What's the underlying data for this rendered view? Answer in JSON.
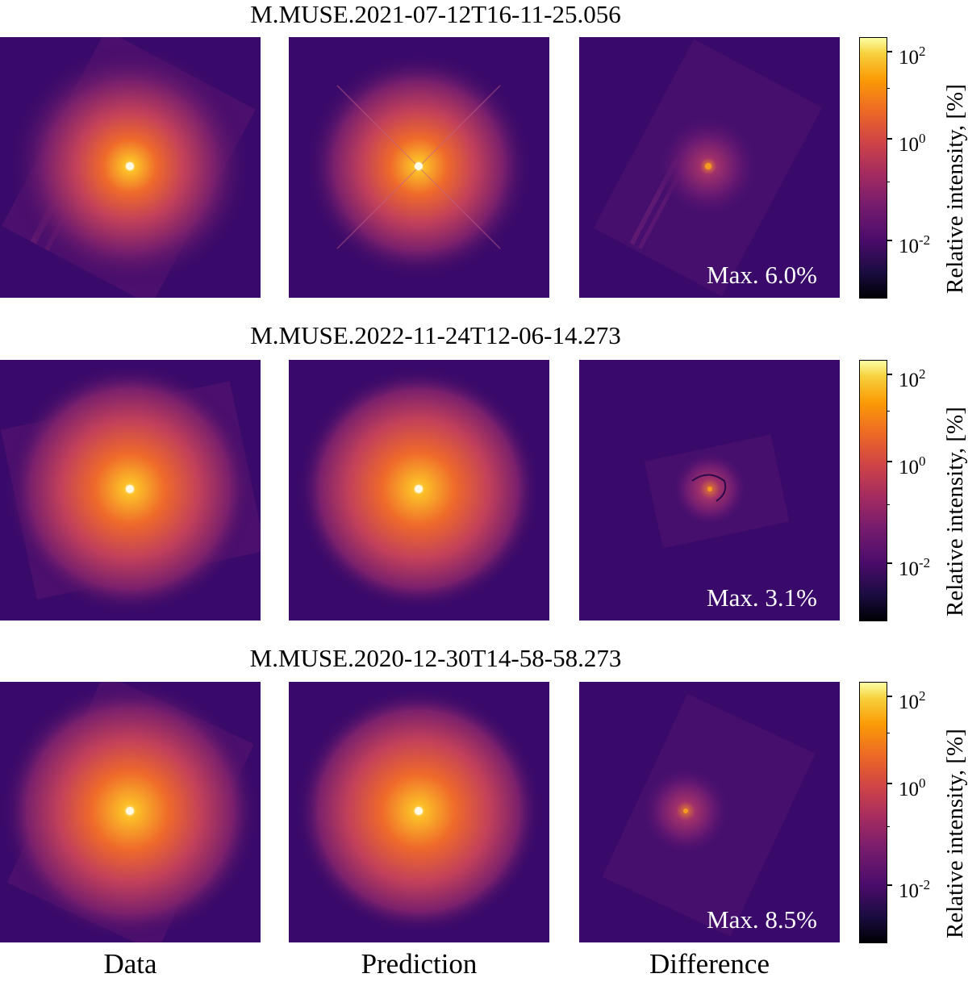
{
  "rows": [
    {
      "title": "M.MUSE.2021-07-12T16-11-25.056",
      "max_label": "Max. 6.0%"
    },
    {
      "title": "M.MUSE.2022-11-24T12-06-14.273",
      "max_label": "Max. 3.1%"
    },
    {
      "title": "M.MUSE.2020-12-30T14-58-58.273",
      "max_label": "Max. 8.5%"
    }
  ],
  "columns": [
    "Data",
    "Prediction",
    "Difference"
  ],
  "colorbar": {
    "label": "Relative intensity, [%]",
    "scale": "log",
    "colormap": "inferno",
    "tick_base": "10",
    "tick_exponents": [
      "2",
      "0",
      "-2"
    ]
  }
}
